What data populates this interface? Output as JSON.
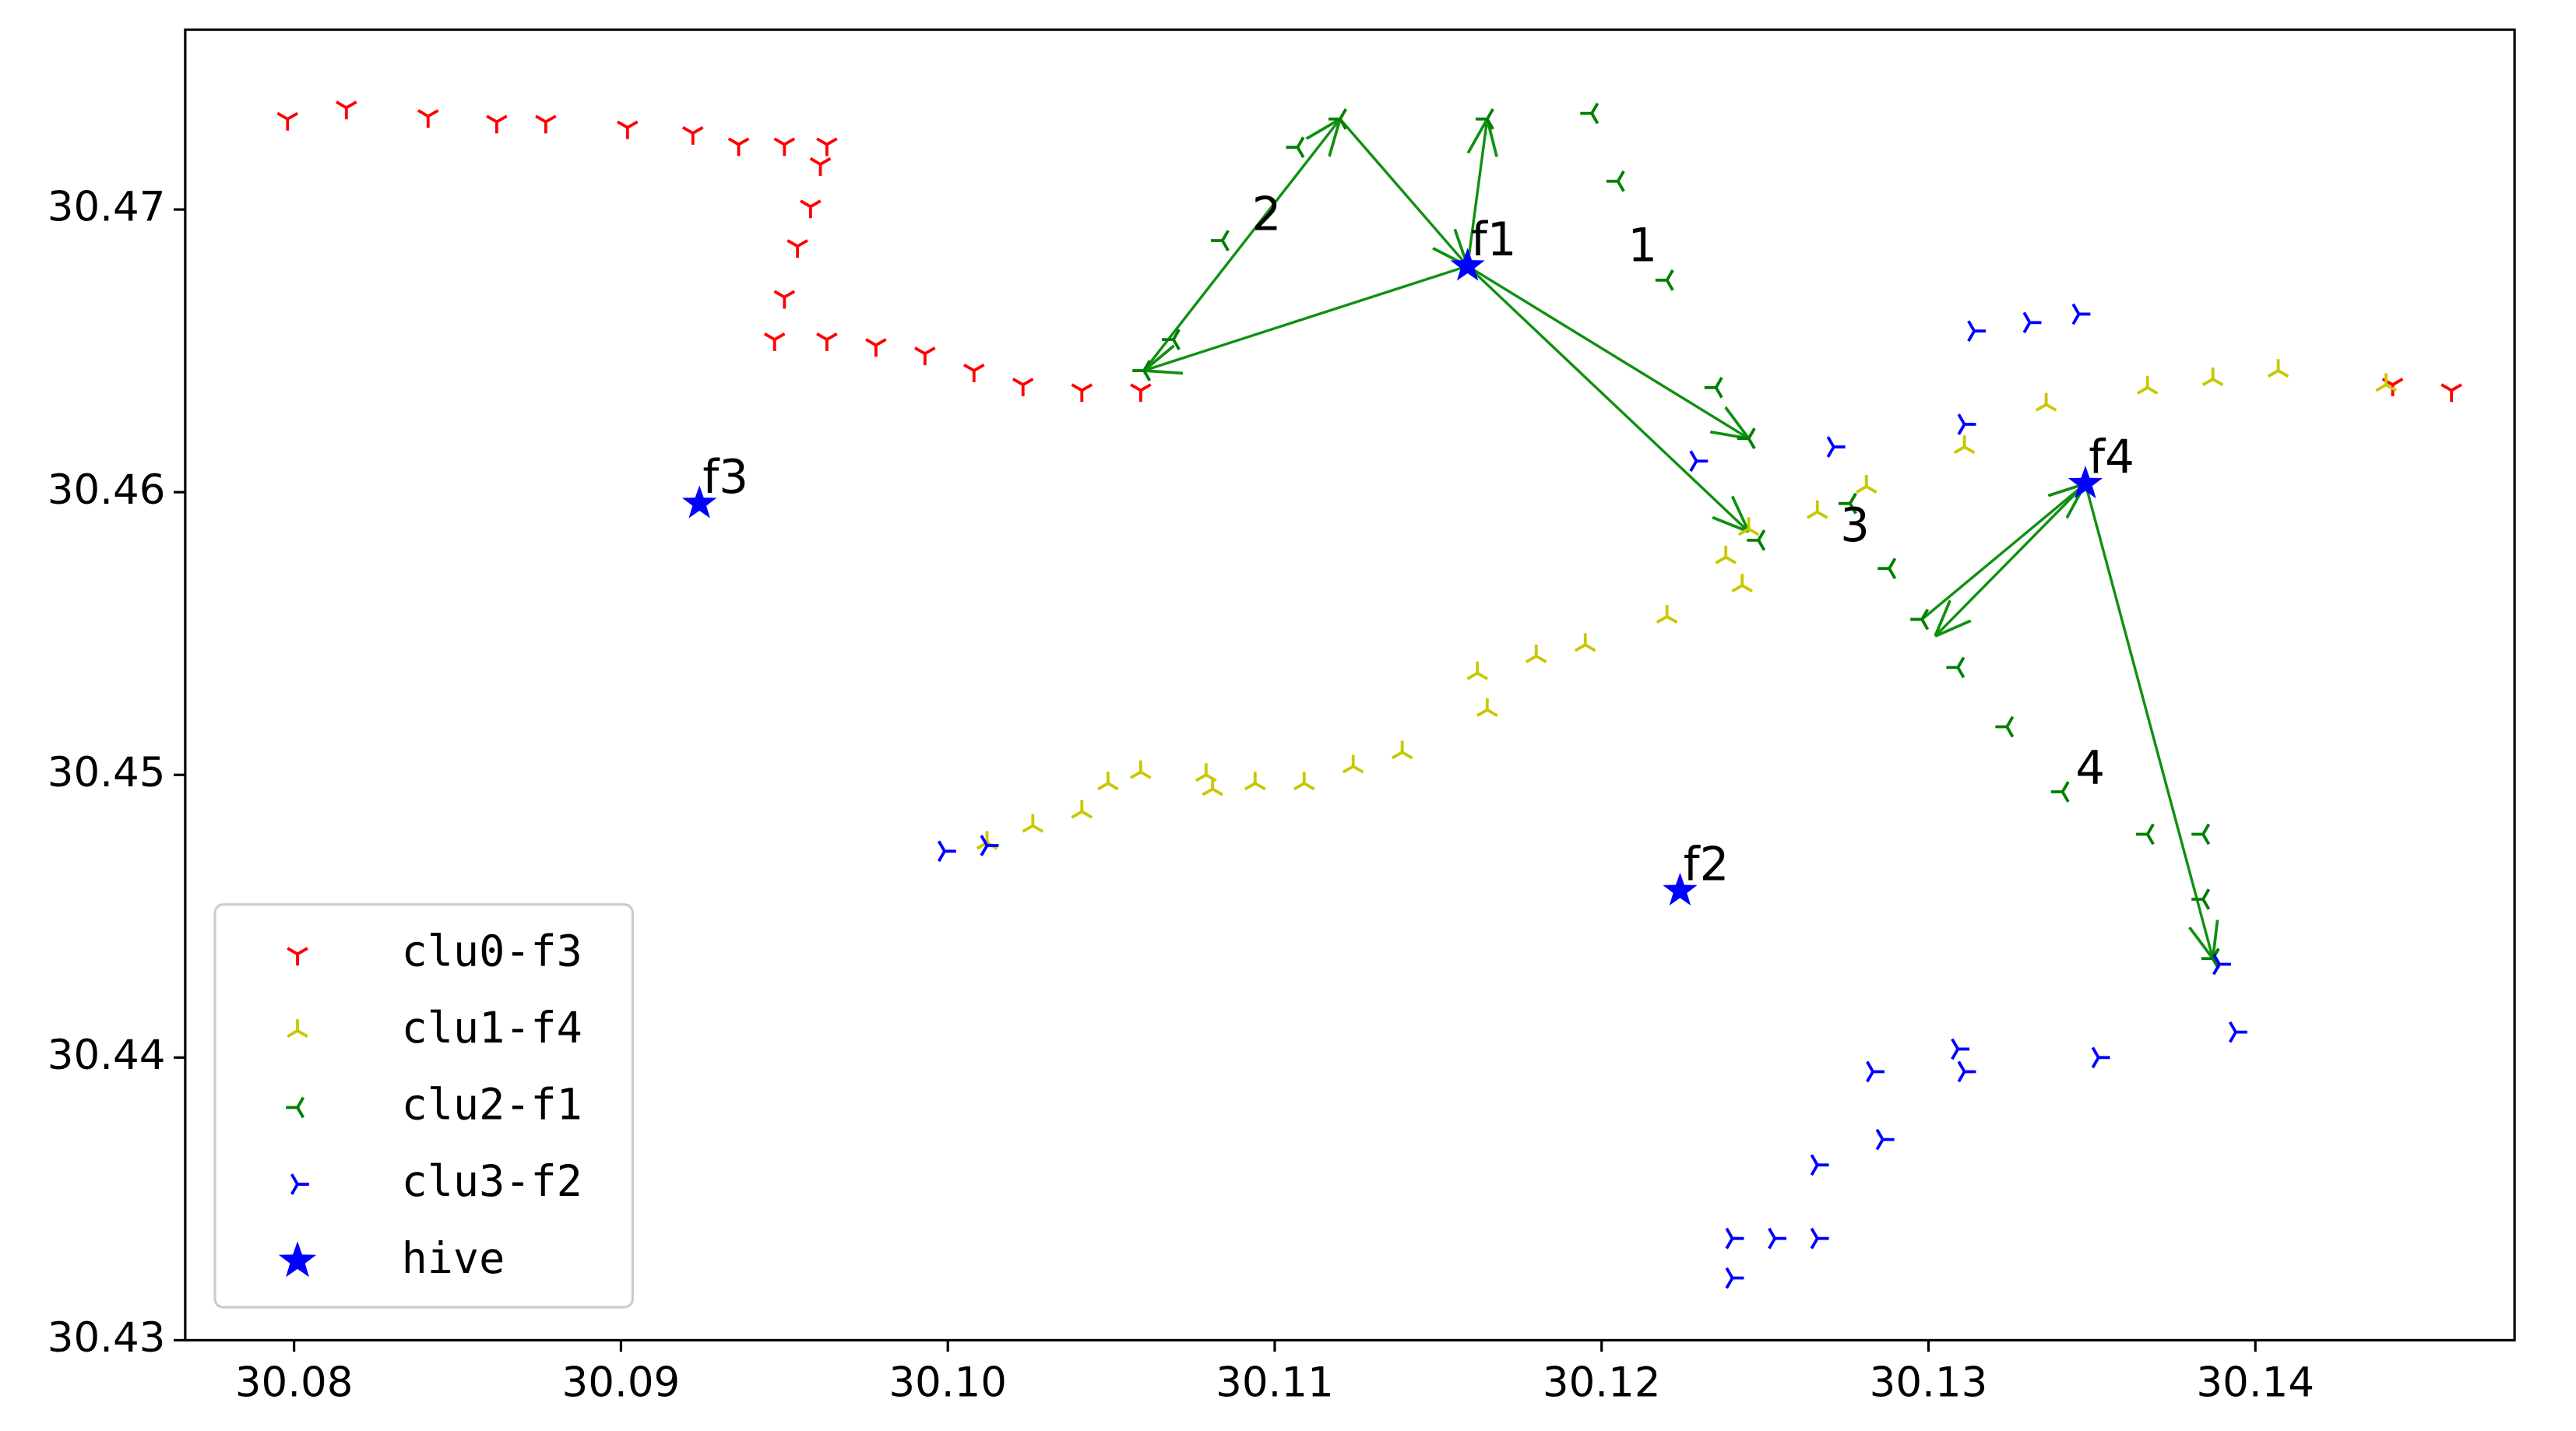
{
  "chart_data": {
    "type": "scatter",
    "xlim": [
      30.07667,
      30.14793
    ],
    "ylim": [
      30.43,
      30.47636
    ],
    "xticks": [
      30.08,
      30.09,
      {
        "value": 30.1,
        "label": "30.10"
      },
      30.11,
      30.12,
      30.13,
      30.14
    ],
    "yticks": [
      30.43,
      30.44,
      30.45,
      30.46,
      30.47
    ],
    "legend": "lower left",
    "series": [
      {
        "name": "clu0-f3",
        "color": "#ff0000",
        "marker": "tri_down",
        "x": [
          30.0798,
          30.0816,
          30.0841,
          30.0862,
          30.0877,
          30.0902,
          30.0922,
          30.0936,
          30.095,
          30.0963,
          30.0961,
          30.0958,
          30.0954,
          30.095,
          30.0947,
          30.0963,
          30.0978,
          30.0993,
          30.1008,
          30.1023,
          30.1041,
          30.1059,
          30.1442,
          30.146
        ],
        "y": [
          30.4732,
          30.4736,
          30.4733,
          30.4731,
          30.4731,
          30.4729,
          30.4727,
          30.4723,
          30.4723,
          30.4723,
          30.4716,
          30.4701,
          30.4687,
          30.4669,
          30.4654,
          30.4654,
          30.4652,
          30.4649,
          30.4643,
          30.4638,
          30.4636,
          30.4636,
          30.4638,
          30.4636
        ]
      },
      {
        "name": "clu1-f4",
        "color": "#c8c800",
        "marker": "tri_up",
        "x": [
          30.1012,
          30.1026,
          30.1041,
          30.1049,
          30.1059,
          30.1079,
          30.1081,
          30.1094,
          30.1109,
          30.1124,
          30.1139,
          30.1165,
          30.1162,
          30.118,
          30.1195,
          30.122,
          30.1243,
          30.1238,
          30.1245,
          30.1266,
          30.1281,
          30.1311,
          30.1336,
          30.1367,
          30.1387,
          30.1407,
          30.144
        ],
        "y": [
          30.4476,
          30.4482,
          30.4487,
          30.4497,
          30.4501,
          30.45,
          30.4495,
          30.4497,
          30.4497,
          30.4503,
          30.4508,
          30.4523,
          30.4536,
          30.4542,
          30.4546,
          30.4556,
          30.4567,
          30.4577,
          30.4587,
          30.4593,
          30.4602,
          30.4616,
          30.4631,
          30.4637,
          30.464,
          30.4643,
          30.4638
        ]
      },
      {
        "name": "clu2-f1",
        "color": "#008000",
        "marker": "tri_left",
        "x": [
          30.106,
          30.1069,
          30.1084,
          30.1107,
          30.112,
          30.1165,
          30.1197,
          30.1205,
          30.122,
          30.1235,
          30.1245,
          30.1248,
          30.1276,
          30.1288,
          30.1298,
          30.1309,
          30.1324,
          30.1341,
          30.1367,
          30.1384,
          30.1384,
          30.1387
        ],
        "y": [
          30.4643,
          30.4654,
          30.4689,
          30.4722,
          30.4732,
          30.4732,
          30.4734,
          30.471,
          30.4675,
          30.4637,
          30.4619,
          30.4583,
          30.4596,
          30.4573,
          30.4555,
          30.4538,
          30.4517,
          30.4494,
          30.4479,
          30.4479,
          30.4456,
          30.4435
        ]
      },
      {
        "name": "clu3-f2",
        "color": "#0000ff",
        "marker": "tri_right",
        "x": [
          30.0999,
          30.1012,
          30.1229,
          30.1271,
          30.1311,
          30.1314,
          30.1331,
          30.1346,
          30.124,
          30.124,
          30.1253,
          30.1266,
          30.1266,
          30.1286,
          30.1283,
          30.1309,
          30.1311,
          30.1352,
          30.1394,
          30.1389
        ],
        "y": [
          30.4473,
          30.4475,
          30.4611,
          30.4616,
          30.4624,
          30.4657,
          30.466,
          30.4663,
          30.4322,
          30.4336,
          30.4336,
          30.4336,
          30.4362,
          30.4371,
          30.4395,
          30.4403,
          30.4395,
          30.44,
          30.4409,
          30.4433
        ]
      },
      {
        "name": "hive",
        "color": "#0000ff",
        "marker": "star",
        "x": [
          30.1159,
          30.1224,
          30.0924,
          30.1348
        ],
        "y": [
          30.468,
          30.4459,
          30.4596,
          30.4603
        ]
      }
    ],
    "annotations": [
      {
        "text": "f1",
        "x": 30.1159,
        "y": 30.468
      },
      {
        "text": "f2",
        "x": 30.1224,
        "y": 30.4459
      },
      {
        "text": "f3",
        "x": 30.0924,
        "y": 30.4596
      },
      {
        "text": "f4",
        "x": 30.1348,
        "y": 30.4603
      },
      {
        "text": "1",
        "x": 30.1207,
        "y": 30.4678
      },
      {
        "text": "2",
        "x": 30.1092,
        "y": 30.4689
      },
      {
        "text": "3",
        "x": 30.1272,
        "y": 30.4579
      },
      {
        "text": "4",
        "x": 30.1344,
        "y": 30.4493
      }
    ],
    "arrows": [
      {
        "from": [
          30.1159,
          30.468
        ],
        "to": [
          30.106,
          30.4643
        ]
      },
      {
        "from": [
          30.106,
          30.4643
        ],
        "to": [
          30.112,
          30.4732
        ]
      },
      {
        "from": [
          30.112,
          30.4732
        ],
        "to": [
          30.1159,
          30.468
        ]
      },
      {
        "from": [
          30.1159,
          30.468
        ],
        "to": [
          30.1165,
          30.4732
        ]
      },
      {
        "from": [
          30.1159,
          30.468
        ],
        "to": [
          30.1245,
          30.4619
        ]
      },
      {
        "from": [
          30.1159,
          30.468
        ],
        "to": [
          30.1245,
          30.4586
        ]
      },
      {
        "from": [
          30.1298,
          30.4555
        ],
        "to": [
          30.1348,
          30.4603
        ]
      },
      {
        "from": [
          30.1348,
          30.4603
        ],
        "to": [
          30.1302,
          30.4549
        ]
      },
      {
        "from": [
          30.1348,
          30.4603
        ],
        "to": [
          30.1387,
          30.4435
        ]
      }
    ]
  }
}
